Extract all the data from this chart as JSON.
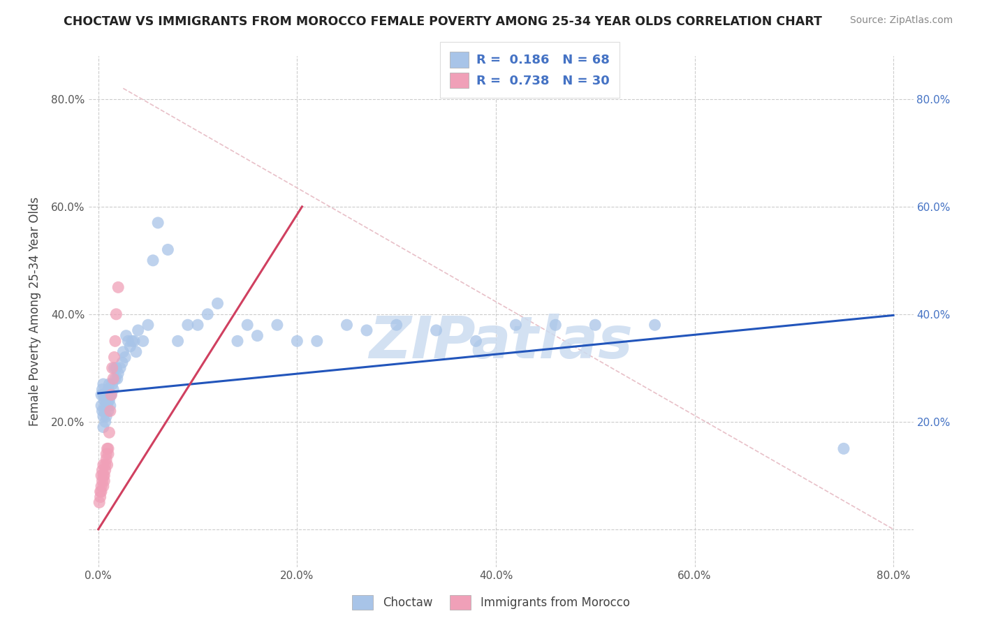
{
  "title": "CHOCTAW VS IMMIGRANTS FROM MOROCCO FEMALE POVERTY AMONG 25-34 YEAR OLDS CORRELATION CHART",
  "source": "Source: ZipAtlas.com",
  "ylabel": "Female Poverty Among 25-34 Year Olds",
  "xlim": [
    -0.01,
    0.82
  ],
  "ylim": [
    -0.07,
    0.88
  ],
  "choctaw_R": "0.186",
  "choctaw_N": "68",
  "morocco_R": "0.738",
  "morocco_N": "30",
  "choctaw_color": "#a8c4e8",
  "morocco_color": "#f0a0b8",
  "choctaw_line_color": "#2255bb",
  "morocco_line_color": "#d04060",
  "ref_line_color": "#e8c0c8",
  "watermark_color": "#ccdcf0",
  "xticks": [
    0.0,
    0.2,
    0.4,
    0.6,
    0.8
  ],
  "xtick_labels": [
    "0.0%",
    "20.0%",
    "40.0%",
    "60.0%",
    "80.0%"
  ],
  "yticks": [
    0.0,
    0.2,
    0.4,
    0.6,
    0.8
  ],
  "ytick_labels": [
    "",
    "20.0%",
    "40.0%",
    "60.0%",
    "80.0%"
  ],
  "right_ytick_labels": [
    "",
    "20.0%",
    "40.0%",
    "60.0%",
    "80.0%"
  ],
  "legend_choctaw": "Choctaw",
  "legend_morocco": "Immigrants from Morocco",
  "watermark": "ZIPatlas",
  "choctaw_x": [
    0.003,
    0.003,
    0.004,
    0.004,
    0.005,
    0.005,
    0.005,
    0.005,
    0.006,
    0.006,
    0.007,
    0.007,
    0.008,
    0.008,
    0.009,
    0.009,
    0.01,
    0.01,
    0.01,
    0.011,
    0.011,
    0.012,
    0.012,
    0.013,
    0.014,
    0.015,
    0.016,
    0.017,
    0.018,
    0.019,
    0.02,
    0.022,
    0.024,
    0.025,
    0.027,
    0.028,
    0.03,
    0.032,
    0.034,
    0.036,
    0.038,
    0.04,
    0.045,
    0.05,
    0.055,
    0.06,
    0.07,
    0.08,
    0.09,
    0.1,
    0.11,
    0.12,
    0.14,
    0.15,
    0.16,
    0.18,
    0.2,
    0.22,
    0.25,
    0.27,
    0.3,
    0.34,
    0.38,
    0.42,
    0.46,
    0.5,
    0.56,
    0.75
  ],
  "choctaw_y": [
    0.25,
    0.23,
    0.26,
    0.22,
    0.25,
    0.27,
    0.21,
    0.19,
    0.24,
    0.22,
    0.23,
    0.2,
    0.24,
    0.21,
    0.25,
    0.23,
    0.26,
    0.24,
    0.22,
    0.27,
    0.24,
    0.25,
    0.23,
    0.25,
    0.27,
    0.26,
    0.3,
    0.28,
    0.3,
    0.28,
    0.29,
    0.3,
    0.31,
    0.33,
    0.32,
    0.36,
    0.35,
    0.34,
    0.35,
    0.35,
    0.33,
    0.37,
    0.35,
    0.38,
    0.5,
    0.57,
    0.52,
    0.35,
    0.38,
    0.38,
    0.4,
    0.42,
    0.35,
    0.38,
    0.36,
    0.38,
    0.35,
    0.35,
    0.38,
    0.37,
    0.38,
    0.37,
    0.35,
    0.38,
    0.38,
    0.38,
    0.38,
    0.15
  ],
  "morocco_x": [
    0.001,
    0.002,
    0.002,
    0.003,
    0.003,
    0.003,
    0.004,
    0.004,
    0.005,
    0.005,
    0.005,
    0.006,
    0.006,
    0.007,
    0.007,
    0.008,
    0.008,
    0.009,
    0.009,
    0.01,
    0.01,
    0.011,
    0.012,
    0.013,
    0.014,
    0.015,
    0.016,
    0.017,
    0.018,
    0.02
  ],
  "morocco_y": [
    0.05,
    0.07,
    0.06,
    0.08,
    0.1,
    0.07,
    0.09,
    0.11,
    0.1,
    0.08,
    0.12,
    0.1,
    0.09,
    0.12,
    0.11,
    0.14,
    0.13,
    0.15,
    0.12,
    0.15,
    0.14,
    0.18,
    0.22,
    0.25,
    0.3,
    0.28,
    0.32,
    0.35,
    0.4,
    0.45
  ],
  "choctaw_trend_x": [
    0.0,
    0.8
  ],
  "choctaw_trend_y": [
    0.253,
    0.398
  ],
  "morocco_trend_x": [
    0.0,
    0.205
  ],
  "morocco_trend_y": [
    0.0,
    0.6
  ],
  "ref_line_x": [
    0.025,
    0.8
  ],
  "ref_line_y": [
    0.82,
    0.0
  ]
}
